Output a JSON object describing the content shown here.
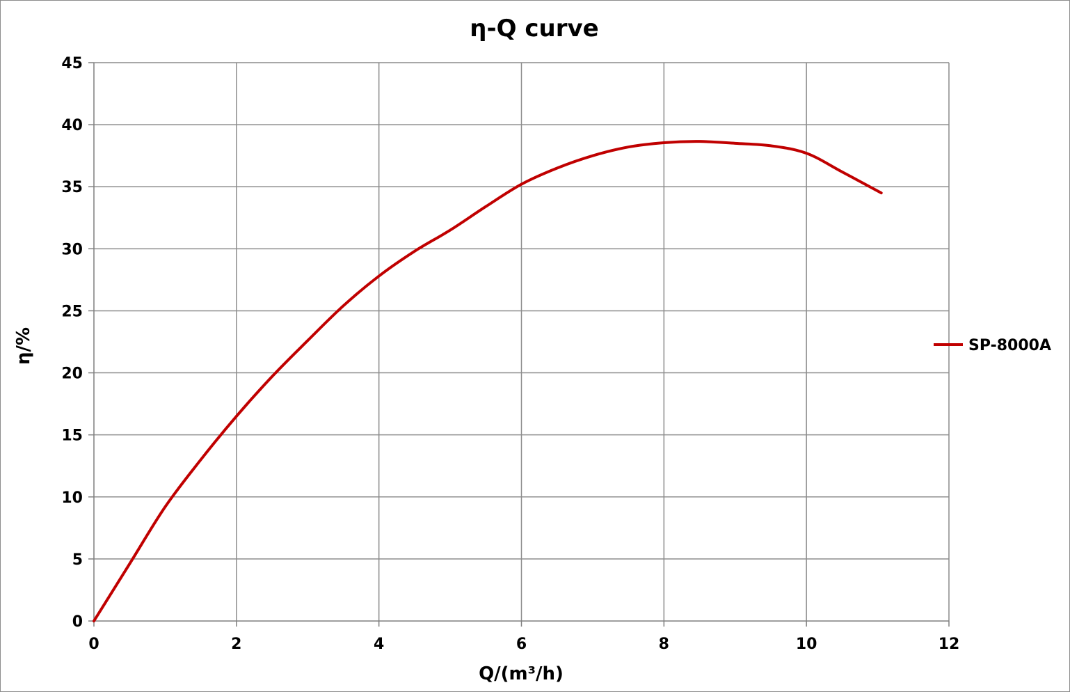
{
  "chart_data": {
    "type": "line",
    "title": "η-Q  curve",
    "xlabel": "Q/(m³/h)",
    "ylabel": "η/%",
    "xlim": [
      0,
      12
    ],
    "ylim": [
      0,
      45
    ],
    "xticks": [
      0,
      2,
      4,
      6,
      8,
      10,
      12
    ],
    "yticks": [
      0,
      5,
      10,
      15,
      20,
      25,
      30,
      35,
      40,
      45
    ],
    "grid": true,
    "legend_position": "right",
    "series": [
      {
        "name": "SP-8000A",
        "color": "#c00000",
        "x": [
          0,
          0.5,
          1,
          1.5,
          2,
          2.5,
          3,
          3.5,
          4,
          4.5,
          5,
          5.5,
          6,
          6.5,
          7,
          7.5,
          8,
          8.5,
          9,
          9.5,
          10,
          10.5,
          11.05
        ],
        "y": [
          0,
          4.6,
          9.2,
          13.0,
          16.5,
          19.7,
          22.6,
          25.4,
          27.8,
          29.8,
          31.5,
          33.4,
          35.2,
          36.5,
          37.5,
          38.2,
          38.55,
          38.65,
          38.5,
          38.3,
          37.7,
          36.2,
          34.5
        ]
      }
    ]
  }
}
